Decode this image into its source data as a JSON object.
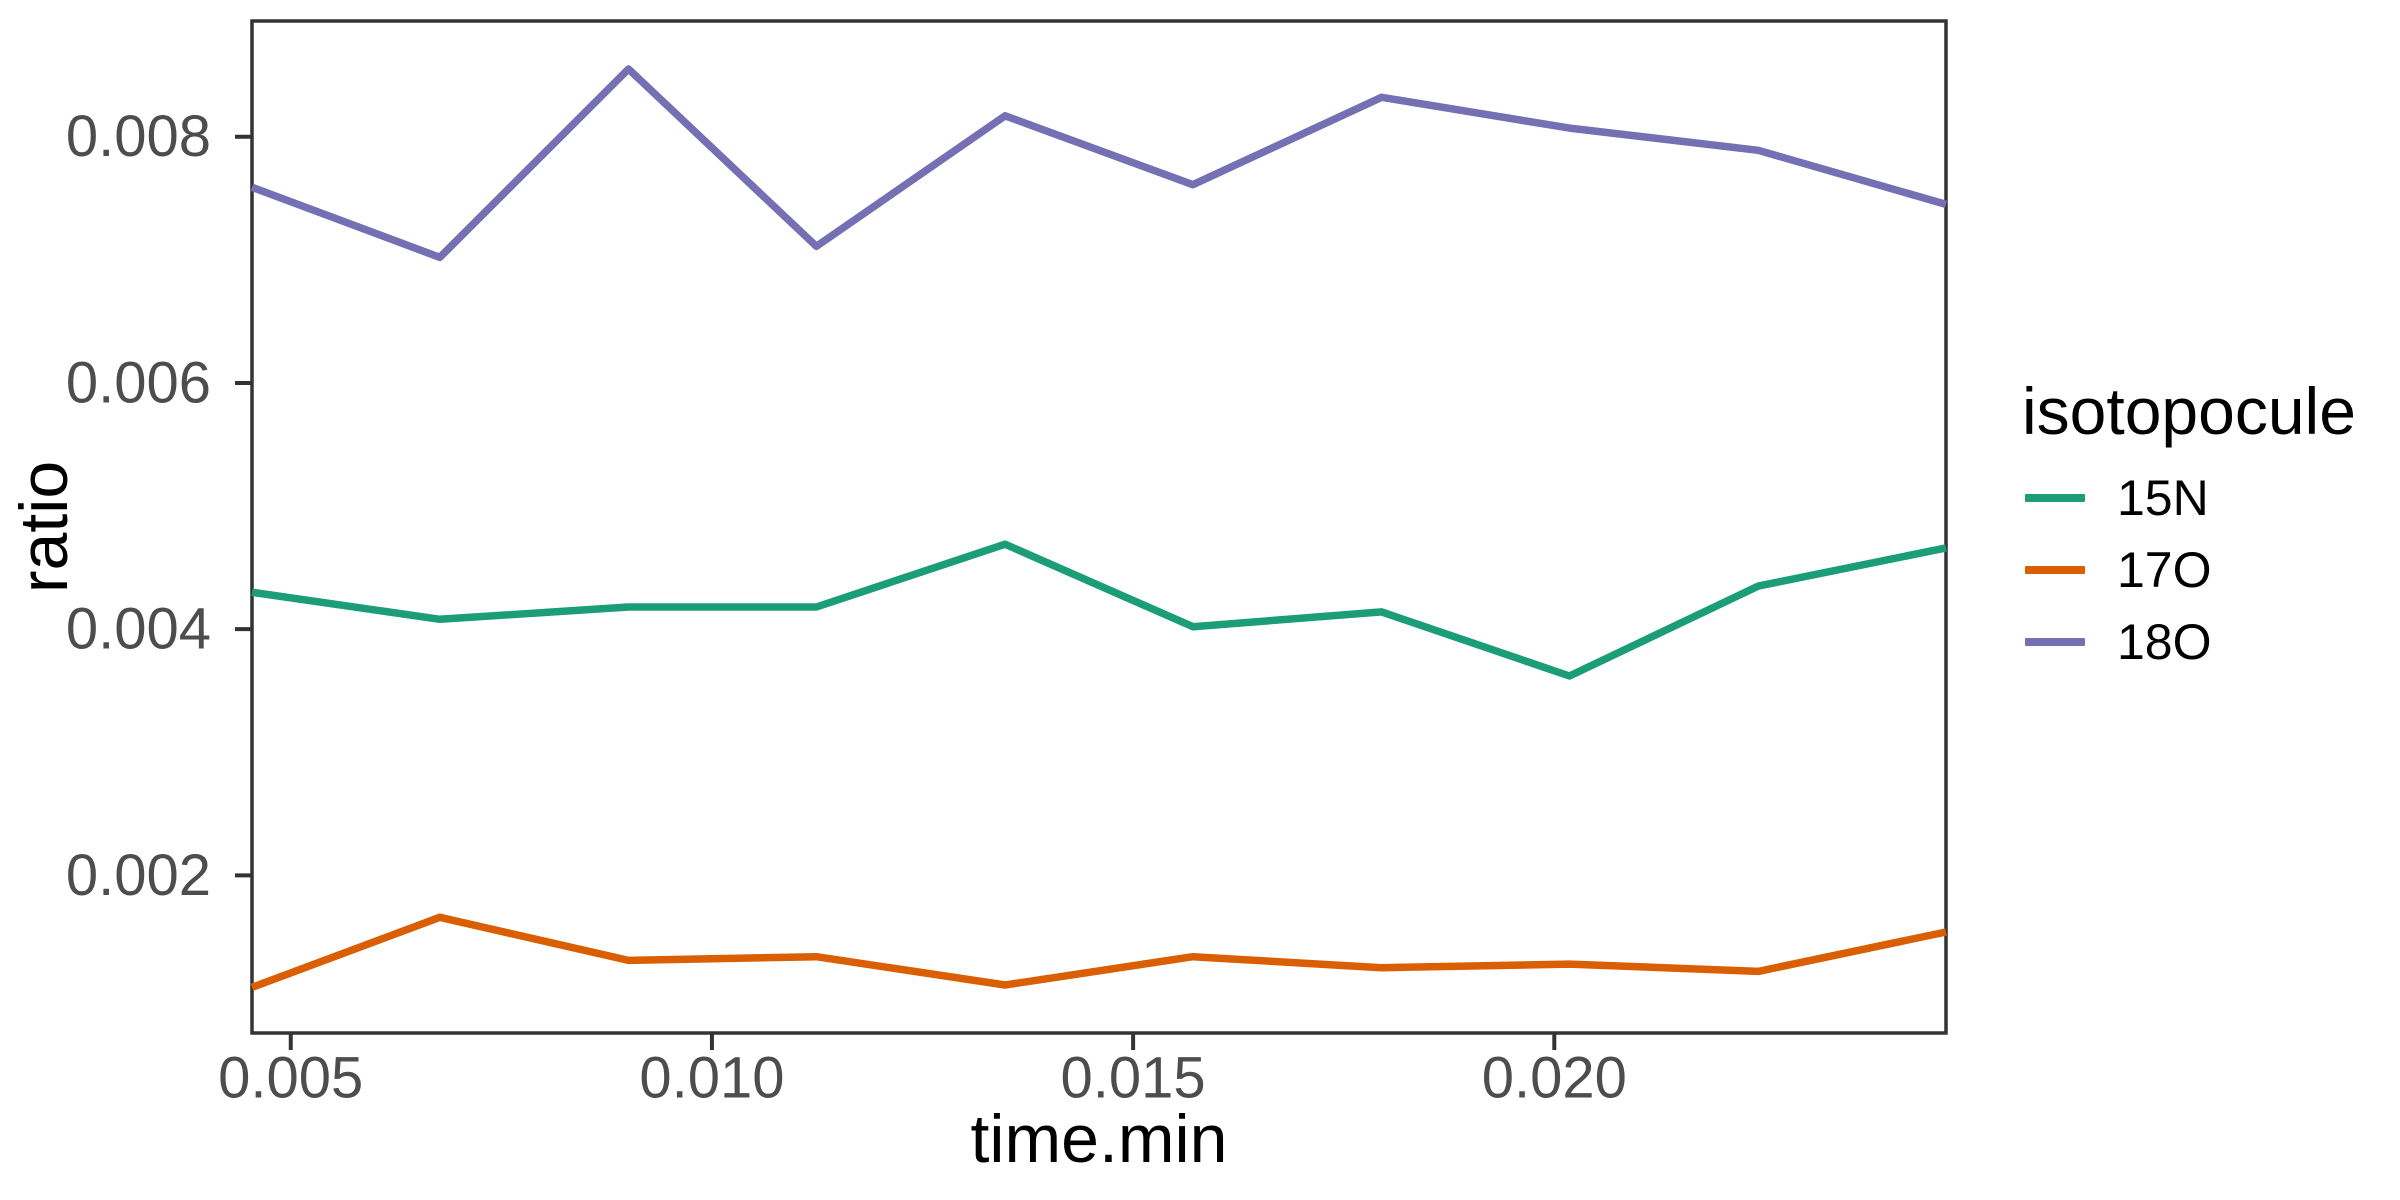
{
  "figure": {
    "background": "#ffffff"
  },
  "axes": {
    "y_title": "ratio",
    "x_title": "time.min"
  },
  "legend": {
    "title": "isotopocule",
    "entries": [
      "15N",
      "17O",
      "18O"
    ]
  },
  "chart_data": {
    "type": "line",
    "title": "",
    "xlabel": "time.min",
    "ylabel": "ratio",
    "legend_title": "isotopocule",
    "legend_position": "right",
    "grid": false,
    "panel_border": true,
    "x": [
      0.00454,
      0.00677,
      0.00901,
      0.01124,
      0.01348,
      0.01571,
      0.01795,
      0.02018,
      0.02242,
      0.02465
    ],
    "series": [
      {
        "name": "15N",
        "color": "#1B9E77",
        "values": [
          0.0043,
          0.00408,
          0.00418,
          0.00418,
          0.00469,
          0.00402,
          0.00414,
          0.00362,
          0.00435,
          0.00466
        ]
      },
      {
        "name": "17O",
        "color": "#D95F02",
        "values": [
          0.00109,
          0.00166,
          0.00131,
          0.00134,
          0.00111,
          0.00134,
          0.00125,
          0.00128,
          0.00122,
          0.00154
        ]
      },
      {
        "name": "18O",
        "color": "#7570B3",
        "values": [
          0.00759,
          0.00702,
          0.00855,
          0.00711,
          0.00817,
          0.00761,
          0.00832,
          0.00807,
          0.00789,
          0.00745
        ]
      }
    ],
    "xlim": [
      0.00454,
      0.02465
    ],
    "ylim": [
      0.00072,
      0.00894
    ],
    "x_ticks": {
      "values": [
        0.005,
        0.01,
        0.015,
        0.02
      ],
      "labels": [
        "0.005",
        "0.010",
        "0.015",
        "0.020"
      ]
    },
    "y_ticks": {
      "values": [
        0.002,
        0.004,
        0.006,
        0.008
      ],
      "labels": [
        "0.002",
        "0.004",
        "0.006",
        "0.008"
      ]
    },
    "styles": {
      "axis_text_color": "#4D4D4D",
      "axis_line_color": "#333333",
      "line_width": 7.5
    }
  }
}
